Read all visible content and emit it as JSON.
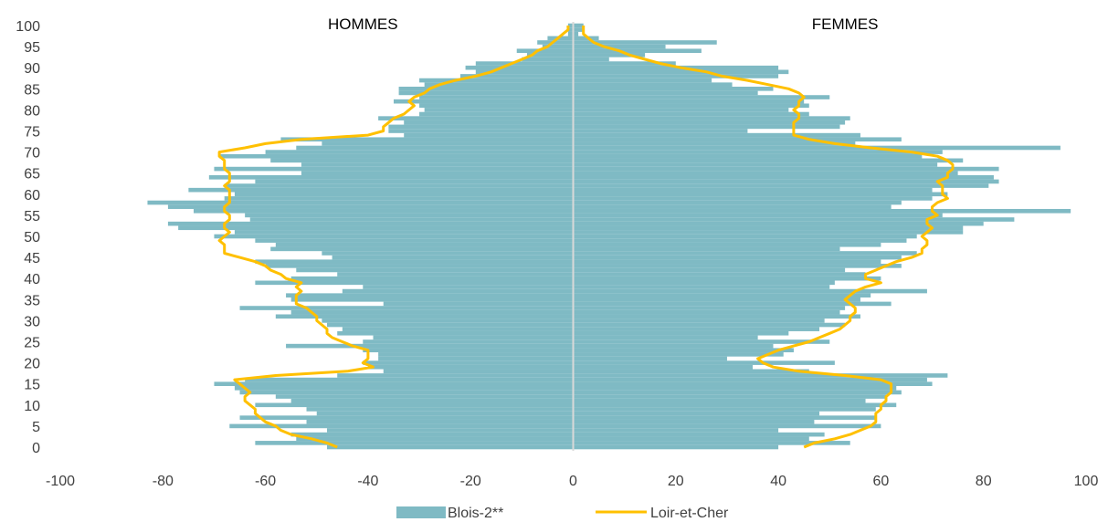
{
  "chart_data": {
    "type": "bar",
    "subtype": "population-pyramid",
    "panel_labels": {
      "left": "HOMMES",
      "right": "FEMMES"
    },
    "xlim": [
      -100,
      100
    ],
    "ylim": [
      0,
      100
    ],
    "x_ticks": [
      "-100",
      "-80",
      "-60",
      "-40",
      "-20",
      "0",
      "20",
      "40",
      "60",
      "80",
      "100"
    ],
    "x_tick_values": [
      -100,
      -80,
      -60,
      -40,
      -20,
      0,
      20,
      40,
      60,
      80,
      100
    ],
    "y_ticks": [
      "0",
      "5",
      "10",
      "15",
      "20",
      "25",
      "30",
      "35",
      "40",
      "45",
      "50",
      "55",
      "60",
      "65",
      "70",
      "75",
      "80",
      "85",
      "90",
      "95",
      "100"
    ],
    "y_tick_values": [
      0,
      5,
      10,
      15,
      20,
      25,
      30,
      35,
      40,
      45,
      50,
      55,
      60,
      65,
      70,
      75,
      80,
      85,
      90,
      95,
      100
    ],
    "ages": [
      0,
      1,
      2,
      3,
      4,
      5,
      6,
      7,
      8,
      9,
      10,
      11,
      12,
      13,
      14,
      15,
      16,
      17,
      18,
      19,
      20,
      21,
      22,
      23,
      24,
      25,
      26,
      27,
      28,
      29,
      30,
      31,
      32,
      33,
      34,
      35,
      36,
      37,
      38,
      39,
      40,
      41,
      42,
      43,
      44,
      45,
      46,
      47,
      48,
      49,
      50,
      51,
      52,
      53,
      54,
      55,
      56,
      57,
      58,
      59,
      60,
      61,
      62,
      63,
      64,
      65,
      66,
      67,
      68,
      69,
      70,
      71,
      72,
      73,
      74,
      75,
      76,
      77,
      78,
      79,
      80,
      81,
      82,
      83,
      84,
      85,
      86,
      87,
      88,
      89,
      90,
      91,
      92,
      93,
      94,
      95,
      96,
      97,
      98,
      99,
      100
    ],
    "series": [
      {
        "name": "Blois-2**",
        "color": "#7fbac4",
        "kind": "bar",
        "men": [
          -48,
          -62,
          -54,
          -55,
          -48,
          -67,
          -52,
          -65,
          -50,
          -52,
          -62,
          -55,
          -58,
          -65,
          -66,
          -70,
          -64,
          -46,
          -37,
          -40,
          -41,
          -38,
          -38,
          -41,
          -56,
          -41,
          -39,
          -46,
          -45,
          -48,
          -49,
          -58,
          -55,
          -65,
          -37,
          -55,
          -56,
          -45,
          -41,
          -62,
          -55,
          -46,
          -54,
          -60,
          -62,
          -47,
          -49,
          -59,
          -58,
          -62,
          -70,
          -66,
          -77,
          -79,
          -63,
          -64,
          -74,
          -79,
          -83,
          -68,
          -66,
          -75,
          -68,
          -62,
          -71,
          -53,
          -70,
          -53,
          -59,
          -69,
          -60,
          -54,
          -49,
          -57,
          -33,
          -36,
          -36,
          -33,
          -38,
          -30,
          -29,
          -30,
          -35,
          -30,
          -34,
          -34,
          -29,
          -30,
          -22,
          -19,
          -21,
          -19,
          -10,
          -9,
          -11,
          -6,
          -7,
          -5,
          -1,
          -1,
          -1
        ],
        "women": [
          40,
          54,
          46,
          49,
          40,
          60,
          47,
          59,
          48,
          59,
          63,
          57,
          61,
          64,
          63,
          70,
          69,
          73,
          46,
          35,
          51,
          30,
          41,
          43,
          39,
          50,
          36,
          42,
          48,
          53,
          49,
          56,
          52,
          53,
          62,
          56,
          58,
          69,
          50,
          51,
          60,
          57,
          53,
          64,
          60,
          64,
          67,
          52,
          60,
          65,
          67,
          76,
          76,
          80,
          86,
          72,
          97,
          62,
          64,
          70,
          73,
          70,
          81,
          83,
          82,
          75,
          83,
          71,
          76,
          68,
          72,
          95,
          55,
          64,
          56,
          34,
          52,
          53,
          54,
          46,
          42,
          46,
          45,
          50,
          36,
          39,
          31,
          27,
          40,
          42,
          40,
          20,
          7,
          14,
          25,
          18,
          28,
          5,
          1,
          2,
          2
        ]
      },
      {
        "name": "Loir-et-Cher",
        "color": "#ffc000",
        "kind": "line",
        "men": [
          -46,
          -48,
          -51,
          -55,
          -57,
          -58,
          -60,
          -61,
          -62,
          -62,
          -63,
          -64,
          -64,
          -63,
          -64,
          -65,
          -66,
          -58,
          -44,
          -39,
          -41,
          -40,
          -40,
          -40,
          -43,
          -45,
          -47,
          -48,
          -48,
          -49,
          -50,
          -50,
          -51,
          -52,
          -54,
          -54,
          -54,
          -53,
          -54,
          -53,
          -56,
          -57,
          -59,
          -60,
          -62,
          -65,
          -68,
          -68,
          -68,
          -69,
          -68,
          -67,
          -68,
          -68,
          -67,
          -67,
          -68,
          -68,
          -67,
          -67,
          -67,
          -67,
          -68,
          -67,
          -67,
          -67,
          -68,
          -68,
          -68,
          -69,
          -69,
          -64,
          -60,
          -53,
          -40,
          -37,
          -37,
          -36,
          -35,
          -33,
          -32,
          -31,
          -32,
          -31,
          -29,
          -28,
          -26,
          -23,
          -19,
          -16,
          -14,
          -12,
          -10,
          -8,
          -7,
          -5,
          -4,
          -3,
          -2,
          -1,
          -1
        ],
        "women": [
          45,
          47,
          51,
          54,
          56,
          58,
          59,
          59,
          59,
          60,
          60,
          61,
          61,
          62,
          62,
          62,
          60,
          53,
          44,
          39,
          37,
          36,
          38,
          40,
          43,
          46,
          48,
          50,
          52,
          53,
          54,
          54,
          55,
          55,
          54,
          53,
          54,
          55,
          57,
          60,
          57,
          57,
          59,
          61,
          63,
          66,
          68,
          68,
          69,
          69,
          68,
          69,
          70,
          69,
          69,
          71,
          70,
          70,
          71,
          73,
          72,
          72,
          72,
          71,
          73,
          73,
          74,
          74,
          73,
          71,
          66,
          58,
          51,
          46,
          43,
          43,
          43,
          43,
          44,
          44,
          43,
          44,
          44,
          45,
          44,
          42,
          38,
          34,
          29,
          26,
          21,
          17,
          14,
          11,
          9,
          6,
          4,
          3,
          2,
          2,
          2
        ]
      }
    ],
    "legend": {
      "placement": "bottom-center"
    },
    "grid": false
  }
}
